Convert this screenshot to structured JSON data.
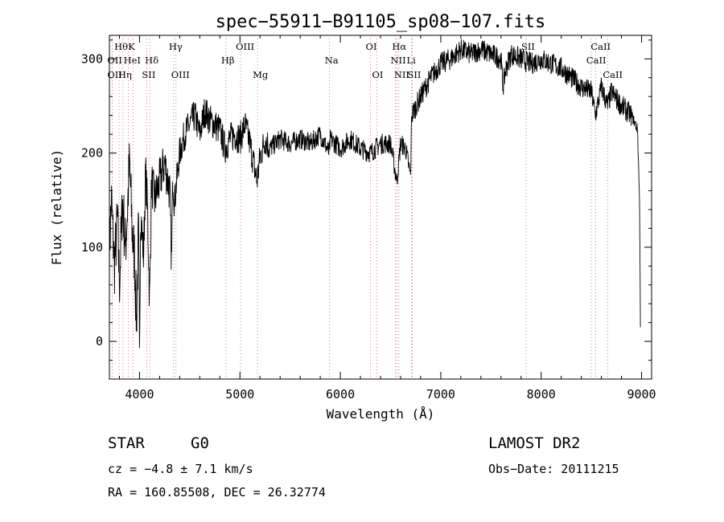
{
  "chart_data": {
    "type": "line",
    "title": "spec−55911−B91105_sp08−107.fits",
    "xlabel": "Wavelength (Å)",
    "ylabel": "Flux (relative)",
    "xlim": [
      3700,
      9100
    ],
    "ylim": [
      -40,
      325
    ],
    "xticks": [
      4000,
      5000,
      6000,
      7000,
      8000,
      9000
    ],
    "yticks": [
      0,
      100,
      200,
      300
    ],
    "grid": false,
    "spectrum_keypoints": [
      [
        3700,
        95
      ],
      [
        3720,
        150
      ],
      [
        3750,
        80
      ],
      [
        3780,
        130
      ],
      [
        3800,
        60
      ],
      [
        3830,
        150
      ],
      [
        3860,
        100
      ],
      [
        3880,
        140
      ],
      [
        3900,
        190
      ],
      [
        3930,
        110
      ],
      [
        3950,
        90
      ],
      [
        3970,
        20
      ],
      [
        3990,
        120
      ],
      [
        4000,
        -20
      ],
      [
        4010,
        140
      ],
      [
        4040,
        90
      ],
      [
        4060,
        180
      ],
      [
        4080,
        140
      ],
      [
        4100,
        40
      ],
      [
        4120,
        170
      ],
      [
        4150,
        150
      ],
      [
        4200,
        170
      ],
      [
        4250,
        190
      ],
      [
        4300,
        160
      ],
      [
        4320,
        80
      ],
      [
        4330,
        180
      ],
      [
        4350,
        150
      ],
      [
        4400,
        200
      ],
      [
        4450,
        220
      ],
      [
        4500,
        230
      ],
      [
        4550,
        240
      ],
      [
        4600,
        220
      ],
      [
        4650,
        245
      ],
      [
        4700,
        235
      ],
      [
        4750,
        230
      ],
      [
        4800,
        225
      ],
      [
        4850,
        205
      ],
      [
        4900,
        215
      ],
      [
        4950,
        220
      ],
      [
        5000,
        215
      ],
      [
        5050,
        230
      ],
      [
        5100,
        210
      ],
      [
        5170,
        170
      ],
      [
        5200,
        195
      ],
      [
        5250,
        215
      ],
      [
        5300,
        205
      ],
      [
        5400,
        215
      ],
      [
        5500,
        210
      ],
      [
        5600,
        215
      ],
      [
        5700,
        210
      ],
      [
        5800,
        220
      ],
      [
        5890,
        200
      ],
      [
        5900,
        215
      ],
      [
        6000,
        205
      ],
      [
        6100,
        215
      ],
      [
        6200,
        205
      ],
      [
        6300,
        200
      ],
      [
        6400,
        210
      ],
      [
        6500,
        210
      ],
      [
        6563,
        170
      ],
      [
        6600,
        210
      ],
      [
        6650,
        205
      ],
      [
        6700,
        175
      ],
      [
        6710,
        240
      ],
      [
        6800,
        260
      ],
      [
        6900,
        280
      ],
      [
        7000,
        295
      ],
      [
        7100,
        300
      ],
      [
        7200,
        310
      ],
      [
        7300,
        305
      ],
      [
        7400,
        310
      ],
      [
        7500,
        305
      ],
      [
        7600,
        300
      ],
      [
        7620,
        270
      ],
      [
        7650,
        290
      ],
      [
        7700,
        305
      ],
      [
        7800,
        300
      ],
      [
        7900,
        295
      ],
      [
        8000,
        300
      ],
      [
        8100,
        295
      ],
      [
        8200,
        290
      ],
      [
        8300,
        280
      ],
      [
        8400,
        270
      ],
      [
        8500,
        265
      ],
      [
        8540,
        240
      ],
      [
        8600,
        270
      ],
      [
        8662,
        250
      ],
      [
        8700,
        265
      ],
      [
        8800,
        250
      ],
      [
        8900,
        240
      ],
      [
        8960,
        225
      ],
      [
        8980,
        150
      ],
      [
        8990,
        0
      ]
    ],
    "line_markers": [
      {
        "label": "Hθ",
        "x": 3797,
        "row": 0
      },
      {
        "label": "K",
        "x": 3934,
        "row": 0
      },
      {
        "label": "OII",
        "x": 3727,
        "row": 1
      },
      {
        "label": "HeI",
        "x": 3889,
        "row": 1
      },
      {
        "label": "OII",
        "x": 3727,
        "row": 2
      },
      {
        "label": "Hη",
        "x": 3835,
        "row": 2
      },
      {
        "label": "Hδ",
        "x": 4102,
        "row": 1
      },
      {
        "label": "SII",
        "x": 4072,
        "row": 2
      },
      {
        "label": "Hγ",
        "x": 4340,
        "row": 0
      },
      {
        "label": "OIII",
        "x": 4363,
        "row": 2
      },
      {
        "label": "Hβ",
        "x": 4861,
        "row": 1
      },
      {
        "label": "OIII",
        "x": 5007,
        "row": 0
      },
      {
        "label": "Mg",
        "x": 5175,
        "row": 2
      },
      {
        "label": "Na",
        "x": 5893,
        "row": 1
      },
      {
        "label": "OI",
        "x": 6300,
        "row": 0
      },
      {
        "label": "OI",
        "x": 6364,
        "row": 2
      },
      {
        "label": "Hα",
        "x": 6563,
        "row": 0
      },
      {
        "label": "NII",
        "x": 6548,
        "row": 1
      },
      {
        "label": "NII",
        "x": 6583,
        "row": 2
      },
      {
        "label": "Li",
        "x": 6708,
        "row": 1
      },
      {
        "label": "SII",
        "x": 6716,
        "row": 2
      },
      {
        "label": "SII",
        "x": 7850,
        "row": 0
      },
      {
        "label": "CaII",
        "x": 8542,
        "row": 0
      },
      {
        "label": "CaII",
        "x": 8498,
        "row": 1
      },
      {
        "label": "CaII",
        "x": 8662,
        "row": 2
      }
    ]
  },
  "info": {
    "object_class": "STAR",
    "subclass": "G0",
    "survey": "LAMOST DR2",
    "redshift": "cz = −4.8 ± 7.1 km/s",
    "obs_date": "Obs−Date: 20111215",
    "coords": "RA = 160.85508, DEC =  26.32774"
  }
}
